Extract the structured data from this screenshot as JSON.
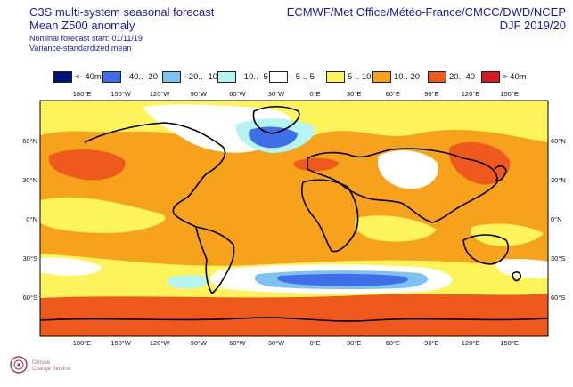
{
  "header": {
    "title_line1": "C3S multi-system seasonal forecast",
    "title_line2": "Mean Z500 anomaly",
    "start_line": "Nominal forecast start: 01/11/19",
    "method_line": "Variance-standardized mean",
    "centres": "ECMWF/Met Office/Météo-France/CMCC/DWD/NCEP",
    "season": "DJF 2019/20"
  },
  "legend": [
    {
      "label": "<- 40m",
      "color": "#00137a"
    },
    {
      "label": "- 40..- 20",
      "color": "#3f6fe8"
    },
    {
      "label": "- 20..- 10",
      "color": "#7ec2f2"
    },
    {
      "label": "- 10..- 5",
      "color": "#b4f4f4"
    },
    {
      "label": "- 5 .. 5",
      "color": "#ffffff"
    },
    {
      "label": "5 .. 10",
      "color": "#fdf35a"
    },
    {
      "label": "10.. 20",
      "color": "#f7a21c"
    },
    {
      "label": "20.. 40",
      "color": "#ee5a1e"
    },
    {
      "label": "> 40m",
      "color": "#d51a22"
    }
  ],
  "lon_labels": [
    "180°E",
    "150°W",
    "120°W",
    "90°W",
    "60°W",
    "30°W",
    "0°E",
    "30°E",
    "60°E",
    "90°E",
    "120°E",
    "150°E"
  ],
  "lat_labels": [
    "60°N",
    "30°N",
    "0°N",
    "30°S",
    "60°S"
  ],
  "logo_text": [
    "Climate",
    "Change Service"
  ]
}
